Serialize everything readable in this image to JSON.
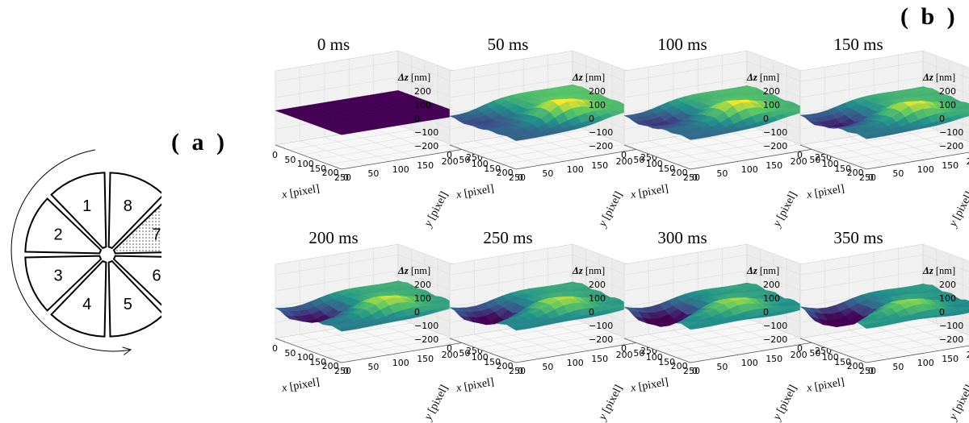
{
  "panel_a": {
    "label": "( a )",
    "segments": [
      {
        "num": "1",
        "shaded": false
      },
      {
        "num": "2",
        "shaded": false
      },
      {
        "num": "3",
        "shaded": false
      },
      {
        "num": "4",
        "shaded": false
      },
      {
        "num": "5",
        "shaded": false
      },
      {
        "num": "6",
        "shaded": false
      },
      {
        "num": "7",
        "shaded": true
      },
      {
        "num": "8",
        "shaded": false
      }
    ],
    "arrow": "counter-clockwise rotation arrow"
  },
  "panel_b": {
    "label": "( b )",
    "z_axis_label": "Δz",
    "z_axis_unit": "[nm]",
    "z_ticks": [
      "200",
      "100",
      "0",
      "−100",
      "−200"
    ],
    "x_axis_label": "x",
    "x_axis_unit": "[pixel]",
    "x_ticks": [
      "0",
      "50",
      "100",
      "150",
      "200",
      "250"
    ],
    "y_axis_label": "y",
    "y_axis_unit": "[pixel]",
    "y_ticks": [
      "0",
      "50",
      "100",
      "150",
      "200",
      "250"
    ],
    "colormap": [
      "#440154",
      "#3b528b",
      "#21918c",
      "#5ec962",
      "#fde725"
    ],
    "plots": [
      {
        "title": "0 ms"
      },
      {
        "title": "50 ms"
      },
      {
        "title": "100 ms"
      },
      {
        "title": "150 ms"
      },
      {
        "title": "200 ms"
      },
      {
        "title": "250 ms"
      },
      {
        "title": "300 ms"
      },
      {
        "title": "350 ms"
      }
    ]
  }
}
